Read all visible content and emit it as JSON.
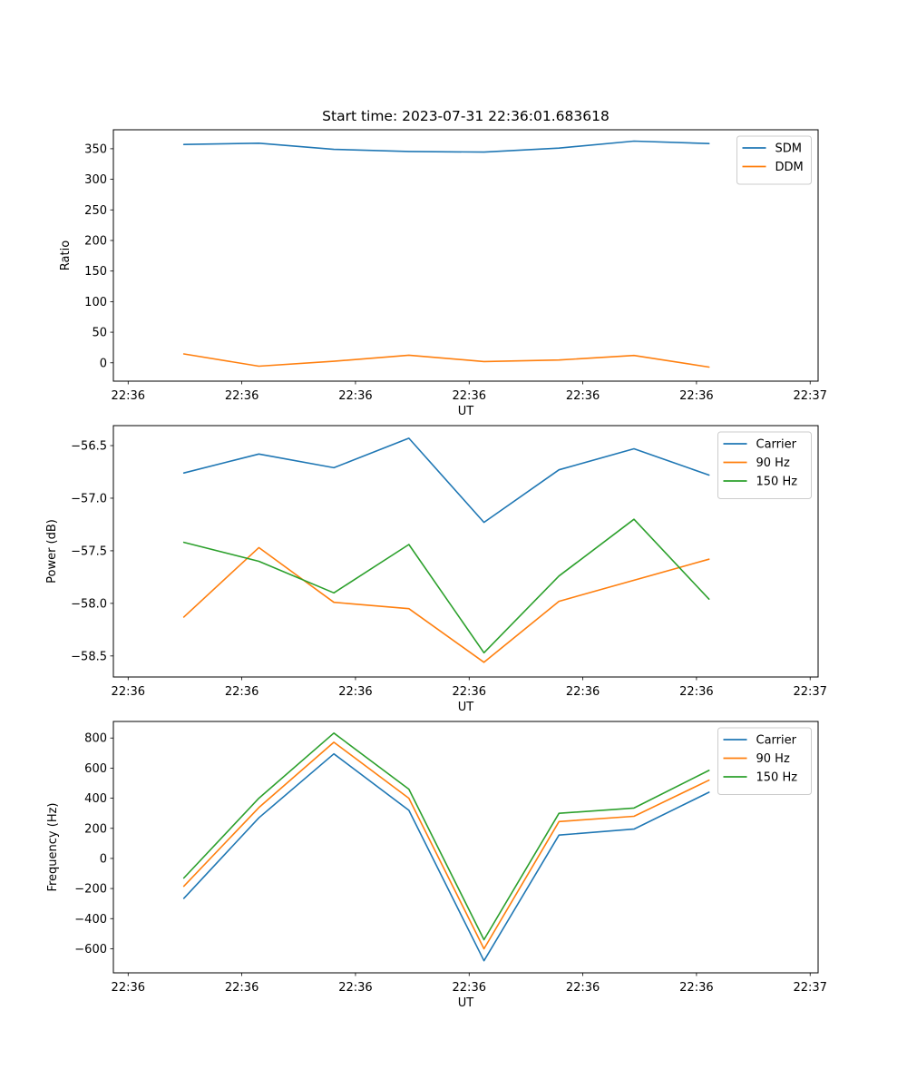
{
  "figure": {
    "title": "Start time: 2023-07-31 22:36:01.683618",
    "background": "#ffffff",
    "accent_colors": {
      "blue": "#1f77b4",
      "orange": "#ff7f0e",
      "green": "#2ca02c"
    }
  },
  "chart_data": [
    {
      "type": "line",
      "title": "Start time: 2023-07-31 22:36:01.683618",
      "xlabel": "UT",
      "ylabel": "Ratio",
      "grid": false,
      "legend_position": "upper right",
      "x_seconds_after_2236": [
        4.9,
        11.5,
        18.1,
        24.7,
        31.3,
        37.9,
        44.5,
        51.1
      ],
      "xlim_seconds": [
        -1.3,
        60.7
      ],
      "ylim": [
        -30,
        381
      ],
      "xtick_seconds": [
        0,
        10,
        20,
        30,
        40,
        50,
        60
      ],
      "xtick_labels": [
        "22:36",
        "22:36",
        "22:36",
        "22:36",
        "22:36",
        "22:36",
        "22:37"
      ],
      "ytick_values": [
        0,
        50,
        100,
        150,
        200,
        250,
        300,
        350
      ],
      "ytick_labels": [
        "0",
        "50",
        "100",
        "150",
        "200",
        "250",
        "300",
        "350"
      ],
      "series": [
        {
          "name": "SDM",
          "color": "#1f77b4",
          "values": [
            357,
            359,
            349,
            345.5,
            344.5,
            351,
            362.5,
            358.5
          ]
        },
        {
          "name": "DDM",
          "color": "#ff7f0e",
          "values": [
            14.5,
            -5.5,
            2.5,
            12.5,
            2,
            4.5,
            12,
            -7
          ]
        }
      ]
    },
    {
      "type": "line",
      "title": "",
      "xlabel": "UT",
      "ylabel": "Power (dB)",
      "grid": false,
      "legend_position": "upper right",
      "x_seconds_after_2236": [
        4.9,
        11.5,
        18.1,
        24.7,
        31.3,
        37.9,
        44.5,
        51.1
      ],
      "xlim_seconds": [
        -1.3,
        60.7
      ],
      "ylim": [
        -58.7,
        -56.31
      ],
      "xtick_seconds": [
        0,
        10,
        20,
        30,
        40,
        50,
        60
      ],
      "xtick_labels": [
        "22:36",
        "22:36",
        "22:36",
        "22:36",
        "22:36",
        "22:36",
        "22:37"
      ],
      "ytick_values": [
        -58.5,
        -58.0,
        -57.5,
        -57.0,
        -56.5
      ],
      "ytick_labels": [
        "−58.5",
        "−58.0",
        "−57.5",
        "−57.0",
        "−56.5"
      ],
      "series": [
        {
          "name": "Carrier",
          "color": "#1f77b4",
          "values": [
            -56.76,
            -56.58,
            -56.71,
            -56.43,
            -57.23,
            -56.73,
            -56.53,
            -56.78
          ]
        },
        {
          "name": "90 Hz",
          "color": "#ff7f0e",
          "values": [
            -58.13,
            -57.47,
            -57.99,
            -58.05,
            -58.56,
            -57.98,
            -57.78,
            -57.58
          ]
        },
        {
          "name": "150 Hz",
          "color": "#2ca02c",
          "values": [
            -57.42,
            -57.6,
            -57.9,
            -57.44,
            -58.47,
            -57.74,
            -57.2,
            -57.96
          ]
        }
      ]
    },
    {
      "type": "line",
      "title": "",
      "xlabel": "UT",
      "ylabel": "Frequency (Hz)",
      "grid": false,
      "legend_position": "upper right",
      "x_seconds_after_2236": [
        4.9,
        11.5,
        18.1,
        24.7,
        31.3,
        37.9,
        44.5,
        51.1
      ],
      "xlim_seconds": [
        -1.3,
        60.7
      ],
      "ylim": [
        -760,
        910
      ],
      "xtick_seconds": [
        0,
        10,
        20,
        30,
        40,
        50,
        60
      ],
      "xtick_labels": [
        "22:36",
        "22:36",
        "22:36",
        "22:36",
        "22:36",
        "22:36",
        "22:37"
      ],
      "ytick_values": [
        -600,
        -400,
        -200,
        0,
        200,
        400,
        600,
        800
      ],
      "ytick_labels": [
        "−600",
        "−400",
        "−200",
        "0",
        "200",
        "400",
        "600",
        "800"
      ],
      "series": [
        {
          "name": "Carrier",
          "color": "#1f77b4",
          "values": [
            -265,
            270,
            695,
            320,
            -680,
            155,
            195,
            440
          ]
        },
        {
          "name": "90 Hz",
          "color": "#ff7f0e",
          "values": [
            -185,
            338,
            772,
            400,
            -600,
            245,
            280,
            520
          ]
        },
        {
          "name": "150 Hz",
          "color": "#2ca02c",
          "values": [
            -130,
            400,
            833,
            460,
            -540,
            300,
            335,
            585
          ]
        }
      ]
    }
  ]
}
